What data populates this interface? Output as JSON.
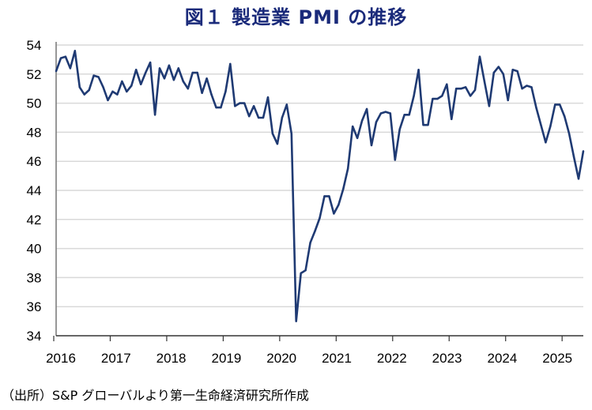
{
  "chart_data": {
    "type": "line",
    "title": "図１ 製造業 PMI の推移",
    "xlabel": "",
    "ylabel": "",
    "ylim": [
      34,
      54
    ],
    "yticks": [
      34,
      36,
      38,
      40,
      42,
      44,
      46,
      48,
      50,
      52,
      54
    ],
    "xtick_labels": [
      "2016",
      "2017",
      "2018",
      "2019",
      "2020",
      "2021",
      "2022",
      "2023",
      "2024",
      "2025"
    ],
    "grid": true,
    "legend": "none",
    "x_start": "2016-01",
    "x_end": "2025-05",
    "frequency": "monthly",
    "color": "#1f3a73",
    "series": [
      {
        "name": "製造業 PMI",
        "values": [
          52.2,
          53.1,
          53.2,
          52.4,
          53.6,
          51.1,
          50.6,
          50.9,
          51.9,
          51.8,
          51.1,
          50.2,
          50.8,
          50.6,
          51.5,
          50.8,
          51.2,
          52.3,
          51.3,
          52.1,
          52.8,
          49.2,
          52.4,
          51.7,
          52.6,
          51.6,
          52.4,
          51.5,
          51.0,
          52.1,
          52.1,
          50.7,
          51.7,
          50.6,
          49.7,
          49.7,
          50.8,
          52.7,
          49.8,
          50.0,
          50.0,
          49.1,
          49.8,
          49.0,
          49.0,
          50.4,
          47.9,
          47.2,
          49.0,
          49.9,
          47.9,
          35.0,
          38.3,
          38.5,
          40.4,
          41.2,
          42.1,
          43.6,
          43.6,
          42.4,
          43.0,
          44.1,
          45.5,
          48.4,
          47.6,
          48.8,
          49.6,
          47.1,
          48.7,
          49.3,
          49.4,
          49.3,
          46.1,
          48.2,
          49.2,
          49.2,
          50.5,
          52.3,
          48.5,
          48.5,
          50.3,
          50.3,
          50.5,
          51.3,
          48.9,
          51.0,
          51.0,
          51.1,
          50.5,
          50.9,
          53.2,
          51.5,
          49.8,
          52.1,
          52.5,
          52.0,
          50.2,
          52.3,
          52.2,
          51.0,
          51.2,
          51.1,
          49.7,
          48.5,
          47.3,
          48.4,
          49.9,
          49.9,
          49.1,
          47.9,
          46.3,
          44.8,
          46.7
        ]
      }
    ]
  },
  "source_note": "（出所）S&P グローバルより第一生命経済研究所作成"
}
